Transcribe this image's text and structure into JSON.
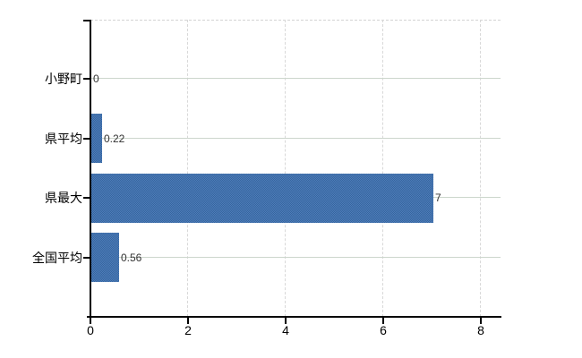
{
  "chart_data": {
    "type": "bar",
    "orientation": "horizontal",
    "title": "",
    "xlabel": "",
    "ylabel": "",
    "categories": [
      "小野町",
      "県平均",
      "県最大",
      "全国平均"
    ],
    "values": [
      0,
      0.22,
      7,
      0.56
    ],
    "value_labels": [
      "0",
      "0.22",
      "7",
      "0.56"
    ],
    "x_ticks": [
      0,
      2,
      4,
      6,
      8
    ],
    "x_tick_labels": [
      "0",
      "2",
      "4",
      "6",
      "8"
    ],
    "xlim": [
      0,
      8.4
    ],
    "grid": "on",
    "legend": "none",
    "colors": {
      "bar": "#4271ac",
      "bar_dither_dark": "#36669e",
      "bar_dither_light": "#4e7cba",
      "grid_horizontal": "#ccd6cc",
      "grid_vertical": "#d8d8d8",
      "plot_top_border": "#d4d4d4",
      "axis": "#000000",
      "category_text": "#000000",
      "value_text": "#333333",
      "tick_text": "#000000"
    }
  }
}
